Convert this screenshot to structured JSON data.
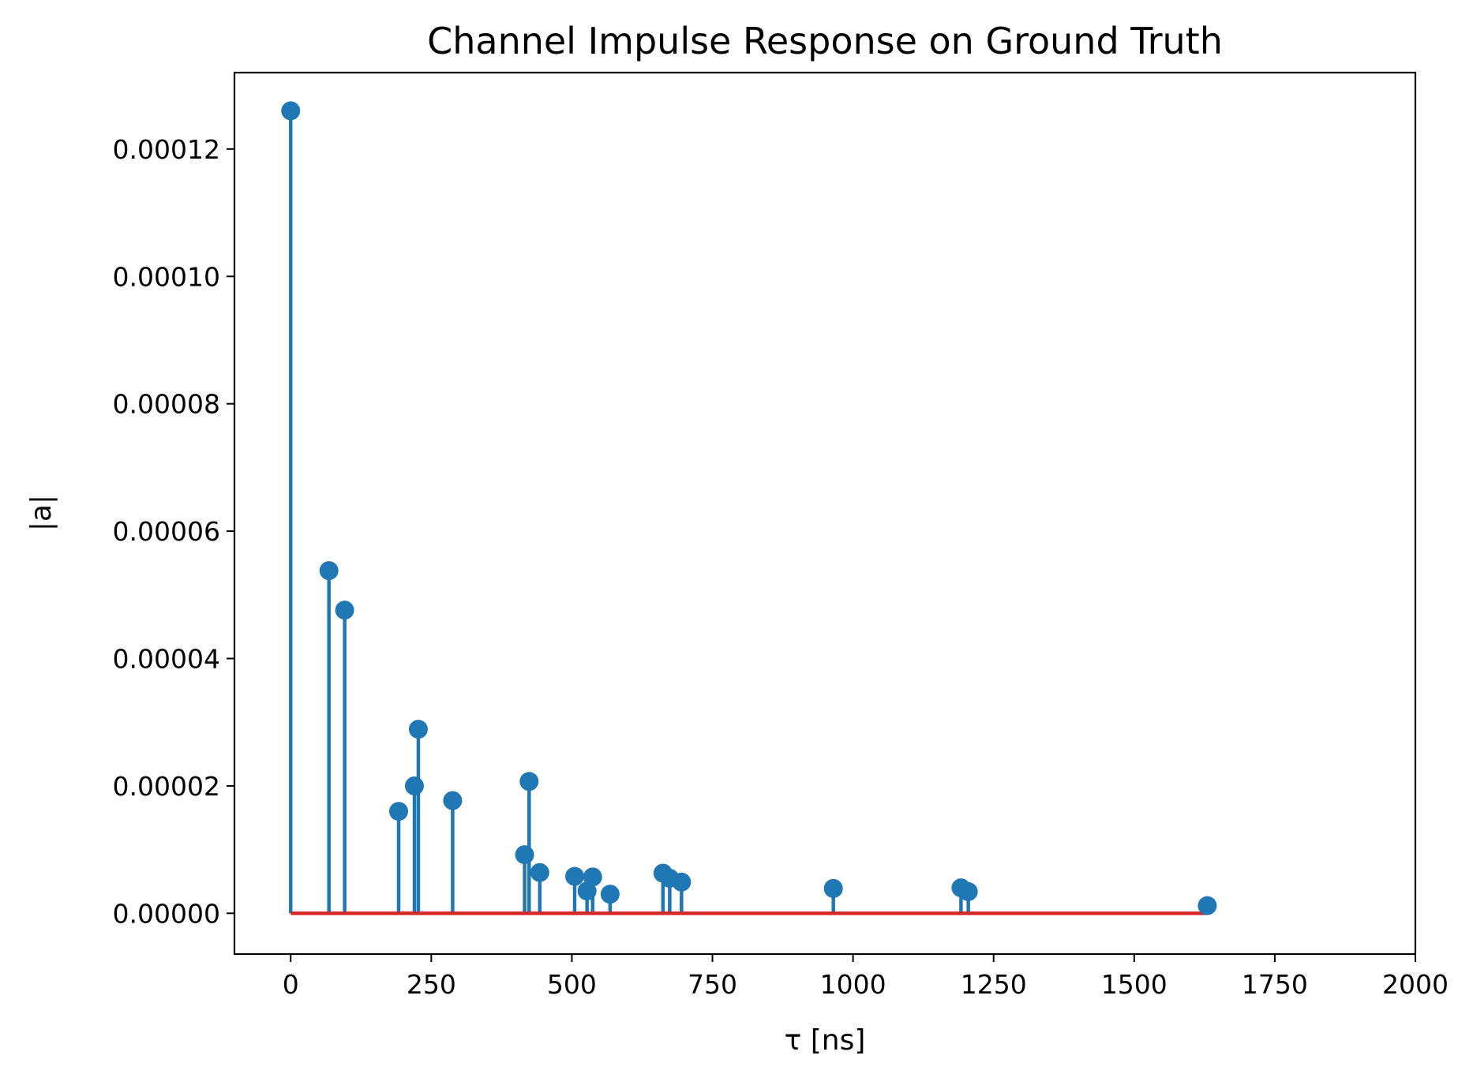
{
  "chart_data": {
    "type": "stem",
    "title": "Channel Impulse Response on Ground Truth",
    "xlabel": "τ [ns]",
    "ylabel": "|a|",
    "xlim": [
      -100,
      2000
    ],
    "ylim": [
      -6.4e-06,
      0.000132
    ],
    "xticks": [
      0,
      250,
      500,
      750,
      1000,
      1250,
      1500,
      1750,
      2000
    ],
    "xtick_labels": [
      "0",
      "250",
      "500",
      "750",
      "1000",
      "1250",
      "1500",
      "1750",
      "2000"
    ],
    "yticks": [
      0,
      2e-05,
      4e-05,
      6e-05,
      8e-05,
      0.0001,
      0.00012
    ],
    "ytick_labels": [
      "0.00000",
      "0.00002",
      "0.00004",
      "0.00006",
      "0.00008",
      "0.00010",
      "0.00012"
    ],
    "grid": false,
    "colors": {
      "stem": "#1f77b4",
      "baseline": "#d62728"
    },
    "baseline": {
      "y": 0,
      "x_range": [
        0,
        1630
      ]
    },
    "points": [
      {
        "x": 0,
        "y": 0.000126
      },
      {
        "x": 68,
        "y": 5.38e-05
      },
      {
        "x": 96,
        "y": 4.76e-05
      },
      {
        "x": 192,
        "y": 1.6e-05
      },
      {
        "x": 220,
        "y": 2e-05
      },
      {
        "x": 227,
        "y": 2.89e-05
      },
      {
        "x": 288,
        "y": 1.77e-05
      },
      {
        "x": 416,
        "y": 9.2e-06
      },
      {
        "x": 424,
        "y": 2.07e-05
      },
      {
        "x": 443,
        "y": 6.4e-06
      },
      {
        "x": 505,
        "y": 5.8e-06
      },
      {
        "x": 527,
        "y": 3.5e-06
      },
      {
        "x": 537,
        "y": 5.7e-06
      },
      {
        "x": 568,
        "y": 3e-06
      },
      {
        "x": 662,
        "y": 6.3e-06
      },
      {
        "x": 674,
        "y": 5.5e-06
      },
      {
        "x": 695,
        "y": 4.9e-06
      },
      {
        "x": 965,
        "y": 3.9e-06
      },
      {
        "x": 1192,
        "y": 4e-06
      },
      {
        "x": 1205,
        "y": 3.4e-06
      },
      {
        "x": 1630,
        "y": 1.2e-06
      }
    ]
  }
}
